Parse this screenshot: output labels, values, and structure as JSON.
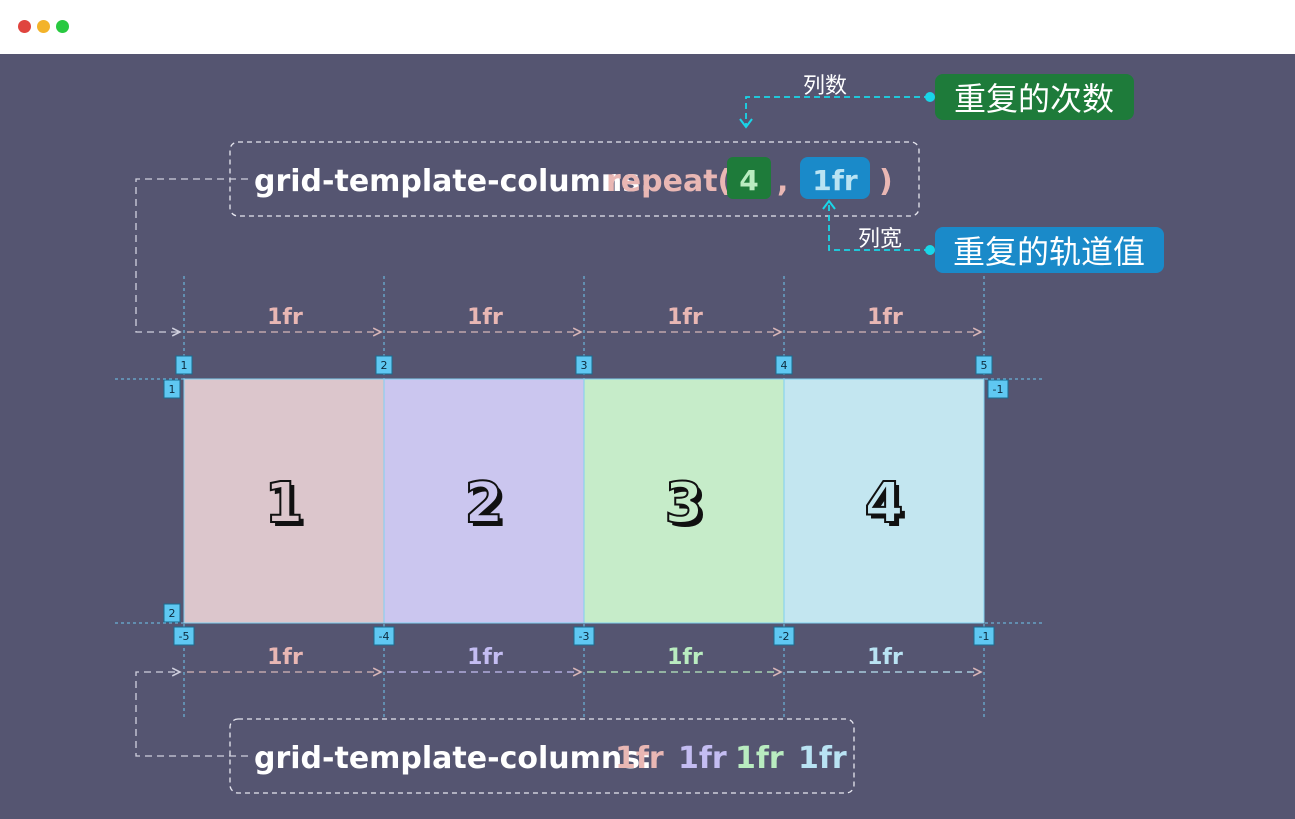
{
  "window": {
    "controls": [
      "close",
      "minimize",
      "maximize"
    ]
  },
  "top_code": {
    "property": "grid-template-columns:",
    "func": "repeat(",
    "count": "4",
    "comma": ",",
    "track": "1fr",
    "close": ")"
  },
  "annotations": {
    "count_small": "列数",
    "count_big": "重复的次数",
    "track_small": "列宽",
    "track_big": "重复的轨道值"
  },
  "top_track_labels": [
    "1fr",
    "1fr",
    "1fr",
    "1fr"
  ],
  "column_line_numbers": [
    "1",
    "2",
    "3",
    "4",
    "5"
  ],
  "column_line_negative": [
    "-5",
    "-4",
    "-3",
    "-2",
    "-1"
  ],
  "row_line_numbers": [
    "1",
    "2"
  ],
  "row_line_negative_top": "-1",
  "cells": [
    {
      "label": "1",
      "color": "#dcc6cc"
    },
    {
      "label": "2",
      "color": "#cbc6ef"
    },
    {
      "label": "3",
      "color": "#c6ecc9"
    },
    {
      "label": "4",
      "color": "#c3e6f0"
    }
  ],
  "bottom_track_labels": [
    "1fr",
    "1fr",
    "1fr",
    "1fr"
  ],
  "bottom_code": {
    "property": "grid-template-columns:",
    "tracks": [
      "1fr",
      "1fr",
      "1fr",
      "1fr"
    ]
  },
  "colors": {
    "background": "#555571",
    "pink": "#e9b7b4",
    "purple": "#c4bdf2",
    "green": "#b9ecc0",
    "blue": "#b9e3f3",
    "count_badge": "#1e7b3a",
    "track_badge": "#1a8ac9",
    "cyan": "#19d6e8",
    "line_marker": "#5fc8f2"
  }
}
